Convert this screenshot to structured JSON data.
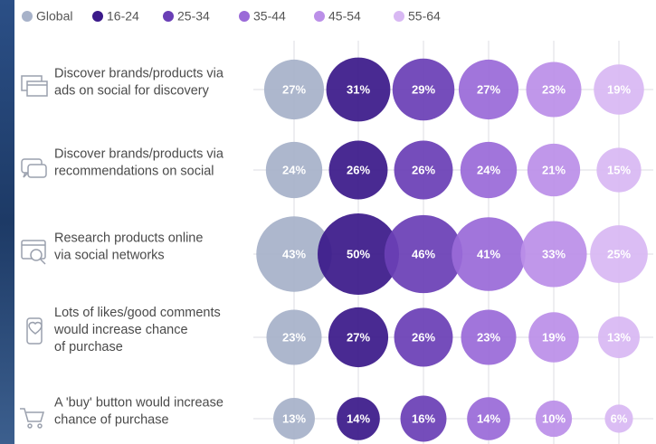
{
  "chart_data": {
    "type": "bubble_matrix",
    "categories": [
      [
        "Discover brands/products via",
        "ads on social for discovery"
      ],
      [
        "Discover brands/products via",
        "recommendations on social"
      ],
      [
        "Research products online",
        "via social networks"
      ],
      [
        "Lots of likes/good comments",
        "would increase chance",
        "of purchase"
      ],
      [
        "A 'buy' button would increase",
        "chance of purchase"
      ]
    ],
    "series": [
      {
        "name": "Global",
        "color": "#a7b2c9",
        "values": [
          27,
          24,
          43,
          23,
          13
        ],
        "value_labels": [
          "27%",
          "24%",
          "43%",
          "23%",
          "13%"
        ]
      },
      {
        "name": "16-24",
        "color": "#3b1a8a",
        "values": [
          31,
          26,
          50,
          27,
          14
        ],
        "value_labels": [
          "31%",
          "26%",
          "50%",
          "27%",
          "14%"
        ]
      },
      {
        "name": "25-34",
        "color": "#6a3fb6",
        "values": [
          29,
          26,
          46,
          26,
          16
        ],
        "value_labels": [
          "29%",
          "26%",
          "46%",
          "26%",
          "16%"
        ]
      },
      {
        "name": "35-44",
        "color": "#9a6ad8",
        "values": [
          27,
          24,
          41,
          23,
          14
        ],
        "value_labels": [
          "27%",
          "24%",
          "41%",
          "23%",
          "14%"
        ]
      },
      {
        "name": "45-54",
        "color": "#bb8fe8",
        "values": [
          23,
          21,
          33,
          19,
          10
        ],
        "value_labels": [
          "23%",
          "21%",
          "33%",
          "19%",
          "10%"
        ]
      },
      {
        "name": "55-64",
        "color": "#d8b8f3",
        "values": [
          19,
          15,
          25,
          13,
          6
        ],
        "value_labels": [
          "19%",
          "15%",
          "25%",
          "13%",
          "6%"
        ]
      }
    ]
  }
}
